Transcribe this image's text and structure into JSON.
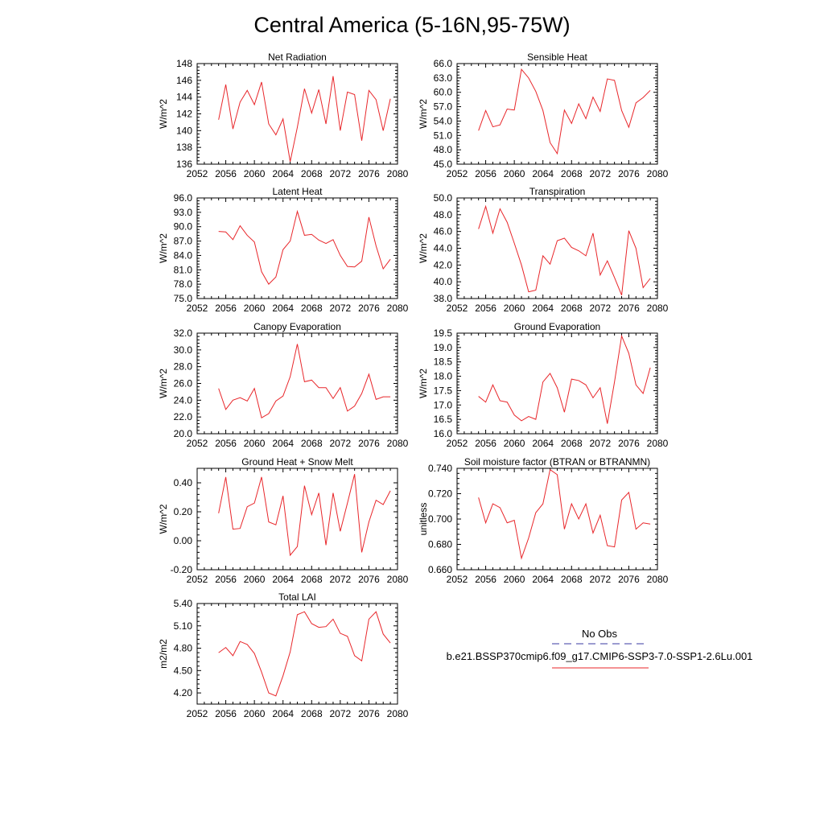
{
  "figure": {
    "title": "Central America (5-16N,95-75W)",
    "series_color": "#e8262a",
    "obs_color": "#3a3aa0"
  },
  "legend": {
    "obs_label": "No Obs",
    "model_label": "b.e21.BSSP370cmip6.f09_g17.CMIP6-SSP3-7.0-SSP1-2.6Lu.001"
  },
  "chart_data": [
    {
      "type": "line",
      "title": "Net Radiation",
      "ylabel": "W/m^2",
      "xlim": [
        2052,
        2080
      ],
      "ylim": [
        136,
        148
      ],
      "xticks": [
        2052,
        2056,
        2060,
        2064,
        2068,
        2072,
        2076,
        2080
      ],
      "yticks": [
        "136",
        "138",
        "140",
        "142",
        "144",
        "146",
        "148"
      ],
      "x": [
        2055,
        2056,
        2057,
        2058,
        2059,
        2060,
        2061,
        2062,
        2063,
        2064,
        2065,
        2066,
        2067,
        2068,
        2069,
        2070,
        2071,
        2072,
        2073,
        2074,
        2075,
        2076,
        2077,
        2078,
        2079
      ],
      "values": [
        141.3,
        145.5,
        140.2,
        143.4,
        144.8,
        143.1,
        145.8,
        140.8,
        139.5,
        141.4,
        136.3,
        140.4,
        145.0,
        142.1,
        144.9,
        140.8,
        146.5,
        140.0,
        144.6,
        144.3,
        138.8,
        144.8,
        143.7,
        140.0,
        143.8
      ]
    },
    {
      "type": "line",
      "title": "Sensible Heat",
      "ylabel": "W/m^2",
      "xlim": [
        2052,
        2080
      ],
      "ylim": [
        45,
        66
      ],
      "xticks": [
        2052,
        2056,
        2060,
        2064,
        2068,
        2072,
        2076,
        2080
      ],
      "yticks": [
        "45.0",
        "48.0",
        "51.0",
        "54.0",
        "57.0",
        "60.0",
        "63.0",
        "66.0"
      ],
      "x": [
        2055,
        2056,
        2057,
        2058,
        2059,
        2060,
        2061,
        2062,
        2063,
        2064,
        2065,
        2066,
        2067,
        2068,
        2069,
        2070,
        2071,
        2072,
        2073,
        2074,
        2075,
        2076,
        2077,
        2078,
        2079
      ],
      "values": [
        52.0,
        56.2,
        52.8,
        53.2,
        56.5,
        56.3,
        64.8,
        63.0,
        60.2,
        56.2,
        49.5,
        47.2,
        56.3,
        53.5,
        57.6,
        54.5,
        59.0,
        56.0,
        62.8,
        62.5,
        56.2,
        52.7,
        57.8,
        58.9,
        60.4
      ]
    },
    {
      "type": "line",
      "title": "Latent Heat",
      "ylabel": "W/m^2",
      "xlim": [
        2052,
        2080
      ],
      "ylim": [
        75,
        96
      ],
      "xticks": [
        2052,
        2056,
        2060,
        2064,
        2068,
        2072,
        2076,
        2080
      ],
      "yticks": [
        "75.0",
        "78.0",
        "81.0",
        "84.0",
        "87.0",
        "90.0",
        "93.0",
        "96.0"
      ],
      "x": [
        2055,
        2056,
        2057,
        2058,
        2059,
        2060,
        2061,
        2062,
        2063,
        2064,
        2065,
        2066,
        2067,
        2068,
        2069,
        2070,
        2071,
        2072,
        2073,
        2074,
        2075,
        2076,
        2077,
        2078,
        2079
      ],
      "values": [
        89.0,
        88.9,
        87.3,
        90.2,
        88.2,
        86.8,
        80.6,
        78.0,
        79.5,
        85.2,
        87.0,
        93.2,
        88.2,
        88.4,
        87.2,
        86.5,
        87.3,
        84.0,
        81.7,
        81.6,
        82.8,
        92.0,
        86.0,
        81.2,
        83.2
      ]
    },
    {
      "type": "line",
      "title": "Transpiration",
      "ylabel": "W/m^2",
      "xlim": [
        2052,
        2080
      ],
      "ylim": [
        38,
        50
      ],
      "xticks": [
        2052,
        2056,
        2060,
        2064,
        2068,
        2072,
        2076,
        2080
      ],
      "yticks": [
        "38.0",
        "40.0",
        "42.0",
        "44.0",
        "46.0",
        "48.0",
        "50.0"
      ],
      "x": [
        2055,
        2056,
        2057,
        2058,
        2059,
        2060,
        2061,
        2062,
        2063,
        2064,
        2065,
        2066,
        2067,
        2068,
        2069,
        2070,
        2071,
        2072,
        2073,
        2074,
        2075,
        2076,
        2077,
        2078,
        2079
      ],
      "values": [
        46.3,
        49.0,
        45.8,
        48.7,
        47.1,
        44.6,
        42.0,
        38.8,
        39.0,
        43.1,
        42.1,
        44.9,
        45.2,
        44.1,
        43.7,
        43.1,
        45.8,
        40.8,
        42.5,
        40.5,
        38.4,
        46.1,
        44.0,
        39.3,
        40.4
      ]
    },
    {
      "type": "line",
      "title": "Canopy Evaporation",
      "ylabel": "W/m^2",
      "xlim": [
        2052,
        2080
      ],
      "ylim": [
        20,
        32
      ],
      "xticks": [
        2052,
        2056,
        2060,
        2064,
        2068,
        2072,
        2076,
        2080
      ],
      "yticks": [
        "20.0",
        "22.0",
        "24.0",
        "26.0",
        "28.0",
        "30.0",
        "32.0"
      ],
      "x": [
        2055,
        2056,
        2057,
        2058,
        2059,
        2060,
        2061,
        2062,
        2063,
        2064,
        2065,
        2066,
        2067,
        2068,
        2069,
        2070,
        2071,
        2072,
        2073,
        2074,
        2075,
        2076,
        2077,
        2078,
        2079
      ],
      "values": [
        25.4,
        22.9,
        24.0,
        24.3,
        23.9,
        25.4,
        21.9,
        22.4,
        23.9,
        24.5,
        26.8,
        30.7,
        26.2,
        26.4,
        25.5,
        25.5,
        24.2,
        25.5,
        22.7,
        23.3,
        24.8,
        27.1,
        24.1,
        24.4,
        24.4
      ]
    },
    {
      "type": "line",
      "title": "Ground Evaporation",
      "ylabel": "W/m^2",
      "xlim": [
        2052,
        2080
      ],
      "ylim": [
        16,
        19.5
      ],
      "xticks": [
        2052,
        2056,
        2060,
        2064,
        2068,
        2072,
        2076,
        2080
      ],
      "yticks": [
        "16.0",
        "16.5",
        "17.0",
        "17.5",
        "18.0",
        "18.5",
        "19.0",
        "19.5"
      ],
      "x": [
        2055,
        2056,
        2057,
        2058,
        2059,
        2060,
        2061,
        2062,
        2063,
        2064,
        2065,
        2066,
        2067,
        2068,
        2069,
        2070,
        2071,
        2072,
        2073,
        2074,
        2075,
        2076,
        2077,
        2078,
        2079
      ],
      "values": [
        17.3,
        17.1,
        17.7,
        17.15,
        17.1,
        16.65,
        16.45,
        16.6,
        16.5,
        17.8,
        18.1,
        17.6,
        16.75,
        17.9,
        17.85,
        17.7,
        17.25,
        17.6,
        16.35,
        17.8,
        19.4,
        18.8,
        17.7,
        17.4,
        18.3
      ]
    },
    {
      "type": "line",
      "title": "Ground Heat + Snow Melt",
      "ylabel": "W/m^2",
      "xlim": [
        2052,
        2080
      ],
      "ylim": [
        -0.2,
        0.5
      ],
      "xticks": [
        2052,
        2056,
        2060,
        2064,
        2068,
        2072,
        2076,
        2080
      ],
      "yticks": [
        "-0.20",
        "0.00",
        "0.20",
        "0.40"
      ],
      "ytick_values": [
        -0.2,
        0.0,
        0.2,
        0.4
      ],
      "x": [
        2055,
        2056,
        2057,
        2058,
        2059,
        2060,
        2061,
        2062,
        2063,
        2064,
        2065,
        2066,
        2067,
        2068,
        2069,
        2070,
        2071,
        2072,
        2073,
        2074,
        2075,
        2076,
        2077,
        2078,
        2079
      ],
      "values": [
        0.19,
        0.44,
        0.08,
        0.085,
        0.235,
        0.26,
        0.44,
        0.13,
        0.11,
        0.31,
        -0.1,
        -0.04,
        0.38,
        0.18,
        0.33,
        -0.03,
        0.33,
        0.065,
        0.26,
        0.46,
        -0.08,
        0.13,
        0.28,
        0.25,
        0.345
      ]
    },
    {
      "type": "line",
      "title": "Soil moisture factor (BTRAN or BTRANMN)",
      "ylabel": "unitless",
      "xlim": [
        2052,
        2080
      ],
      "ylim": [
        0.66,
        0.74
      ],
      "xticks": [
        2052,
        2056,
        2060,
        2064,
        2068,
        2072,
        2076,
        2080
      ],
      "yticks": [
        "0.660",
        "0.680",
        "0.700",
        "0.720",
        "0.740"
      ],
      "x": [
        2055,
        2056,
        2057,
        2058,
        2059,
        2060,
        2061,
        2062,
        2063,
        2064,
        2065,
        2066,
        2067,
        2068,
        2069,
        2070,
        2071,
        2072,
        2073,
        2074,
        2075,
        2076,
        2077,
        2078,
        2079
      ],
      "values": [
        0.717,
        0.697,
        0.712,
        0.709,
        0.697,
        0.699,
        0.669,
        0.685,
        0.705,
        0.712,
        0.739,
        0.735,
        0.692,
        0.712,
        0.7,
        0.712,
        0.689,
        0.703,
        0.679,
        0.678,
        0.715,
        0.721,
        0.692,
        0.697,
        0.696
      ]
    },
    {
      "type": "line",
      "title": "Total LAI",
      "ylabel": "m2/m2",
      "xlim": [
        2052,
        2080
      ],
      "ylim": [
        4.05,
        5.4
      ],
      "xticks": [
        2052,
        2056,
        2060,
        2064,
        2068,
        2072,
        2076,
        2080
      ],
      "yticks": [
        "4.20",
        "4.50",
        "4.80",
        "5.10",
        "5.40"
      ],
      "ytick_values": [
        4.2,
        4.5,
        4.8,
        5.1,
        5.4
      ],
      "x": [
        2055,
        2056,
        2057,
        2058,
        2059,
        2060,
        2061,
        2062,
        2063,
        2064,
        2065,
        2066,
        2067,
        2068,
        2069,
        2070,
        2071,
        2072,
        2073,
        2074,
        2075,
        2076,
        2077,
        2078,
        2079
      ],
      "values": [
        4.74,
        4.81,
        4.7,
        4.89,
        4.85,
        4.73,
        4.48,
        4.2,
        4.16,
        4.43,
        4.75,
        5.25,
        5.29,
        5.13,
        5.08,
        5.09,
        5.19,
        5.0,
        4.96,
        4.7,
        4.63,
        5.19,
        5.29,
        4.99,
        4.87
      ]
    }
  ]
}
